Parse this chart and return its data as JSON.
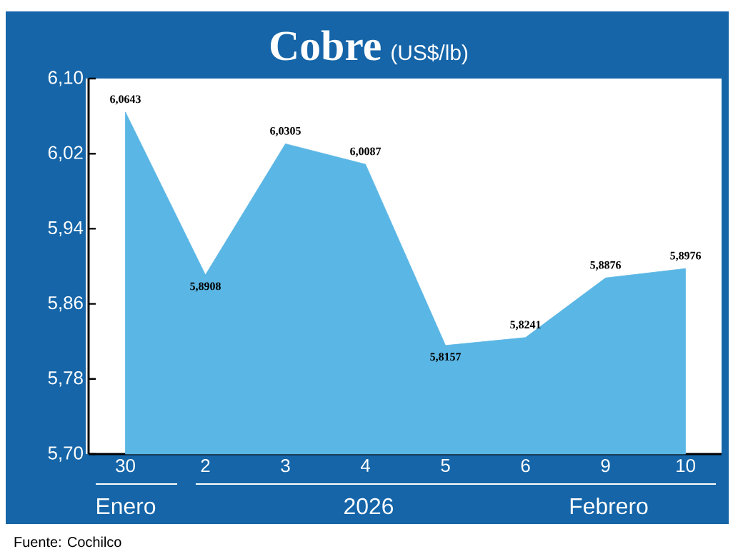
{
  "chart_data": {
    "type": "area",
    "title": "Cobre",
    "subtitle": "(US$/lb)",
    "categories": [
      "30",
      "2",
      "3",
      "4",
      "5",
      "6",
      "9",
      "10"
    ],
    "values": [
      6.0643,
      5.8908,
      6.0305,
      6.0087,
      5.8157,
      5.8241,
      5.8876,
      5.8976
    ],
    "value_labels": [
      "6,0643",
      "5,8908",
      "6,0305",
      "6,0087",
      "5,8157",
      "5,8241",
      "5,8876",
      "5,8976"
    ],
    "color": "#5ab6e4",
    "ylim": [
      5.7,
      6.1
    ],
    "yticks": [
      {
        "value": 5.7,
        "label": "5,70"
      },
      {
        "value": 5.78,
        "label": "5,78"
      },
      {
        "value": 5.86,
        "label": "5,86"
      },
      {
        "value": 5.94,
        "label": "5,94"
      },
      {
        "value": 6.02,
        "label": "6,02"
      },
      {
        "value": 6.1,
        "label": "6,10"
      }
    ],
    "annotations": [
      "Enero",
      "2026",
      "Febrero",
      "Fuente: Cochilco"
    ]
  }
}
